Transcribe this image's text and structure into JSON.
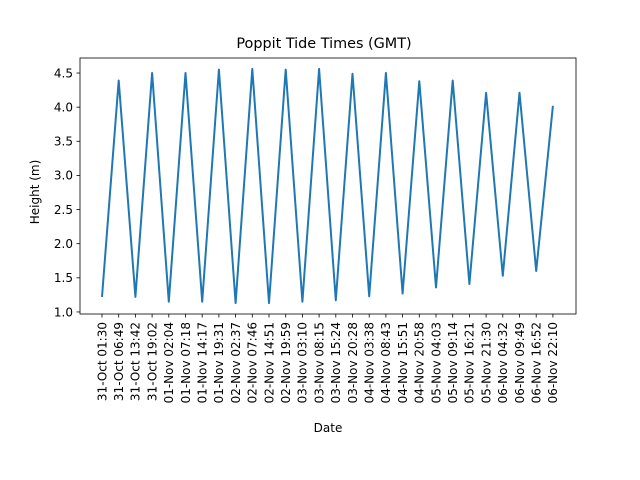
{
  "chart_data": {
    "type": "line",
    "title": "Poppit Tide Times (GMT)",
    "xlabel": "Date",
    "ylabel": "Height (m)",
    "ylim": [
      0.97,
      4.72
    ],
    "yticks": [
      "1.0",
      "1.5",
      "2.0",
      "2.5",
      "3.0",
      "3.5",
      "4.0",
      "4.5"
    ],
    "grid": false,
    "line_color": "#1f77b4",
    "categories": [
      "31-Oct 01:30",
      "31-Oct 06:49",
      "31-Oct 13:42",
      "31-Oct 19:02",
      "01-Nov 02:04",
      "01-Nov 07:18",
      "01-Nov 14:17",
      "01-Nov 19:31",
      "02-Nov 02:37",
      "02-Nov 07:46",
      "02-Nov 14:51",
      "02-Nov 19:59",
      "03-Nov 03:10",
      "03-Nov 08:15",
      "03-Nov 15:24",
      "03-Nov 20:28",
      "04-Nov 03:38",
      "04-Nov 08:43",
      "04-Nov 15:51",
      "04-Nov 20:58",
      "05-Nov 04:03",
      "05-Nov 09:14",
      "05-Nov 16:21",
      "05-Nov 21:30",
      "06-Nov 04:32",
      "06-Nov 09:49",
      "06-Nov 16:52",
      "06-Nov 22:10"
    ],
    "values": [
      1.22,
      4.39,
      1.22,
      4.5,
      1.15,
      4.5,
      1.15,
      4.55,
      1.13,
      4.56,
      1.13,
      4.55,
      1.15,
      4.56,
      1.17,
      4.49,
      1.23,
      4.5,
      1.27,
      4.38,
      1.36,
      4.39,
      1.41,
      4.21,
      1.53,
      4.21,
      1.6,
      4.02
    ]
  }
}
